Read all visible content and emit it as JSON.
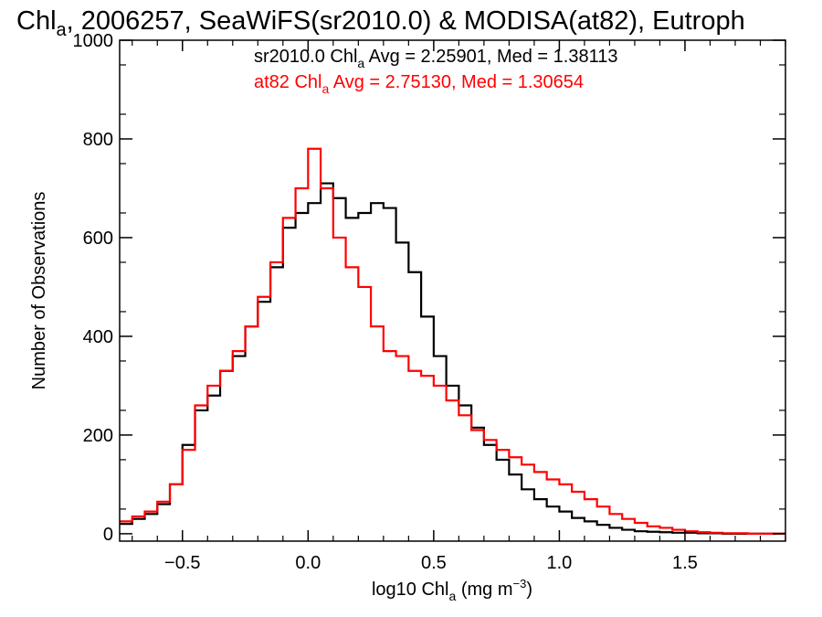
{
  "chart_data": {
    "type": "line",
    "title": {
      "main": "Chl",
      "sub": "a",
      "rest": ", 2006257, SeaWiFS(sr2010.0) & MODISA(at82), Eutroph"
    },
    "xlabel": {
      "main": "log10 Chl",
      "sub": "a",
      "rest": " (mg m",
      "sup": "−3",
      "end": ")"
    },
    "ylabel": "Number of Observations",
    "xlim": [
      -0.75,
      1.9
    ],
    "ylim": [
      -15,
      1000
    ],
    "xticks": [
      -0.5,
      0.0,
      0.5,
      1.0,
      1.5
    ],
    "xtick_labels": [
      "−0.5",
      "0.0",
      "0.5",
      "1.0",
      "1.5"
    ],
    "yticks": [
      0,
      200,
      400,
      600,
      800,
      1000
    ],
    "ytick_labels": [
      "0",
      "200",
      "400",
      "600",
      "800",
      "1000"
    ],
    "series": [
      {
        "color": "#000000",
        "legend": {
          "pre": "sr2010.0 Chl",
          "sub": "a",
          "post": " Avg = 2.25901, Med = 1.38113"
        },
        "x": [
          -0.75,
          -0.7,
          -0.65,
          -0.6,
          -0.55,
          -0.5,
          -0.45,
          -0.4,
          -0.35,
          -0.3,
          -0.25,
          -0.2,
          -0.15,
          -0.1,
          -0.05,
          0.0,
          0.05,
          0.1,
          0.15,
          0.2,
          0.25,
          0.3,
          0.35,
          0.4,
          0.45,
          0.5,
          0.55,
          0.6,
          0.65,
          0.7,
          0.75,
          0.8,
          0.85,
          0.9,
          0.95,
          1.0,
          1.05,
          1.1,
          1.15,
          1.2,
          1.25,
          1.3,
          1.35,
          1.4,
          1.45,
          1.5,
          1.55,
          1.6,
          1.65,
          1.7,
          1.75,
          1.8,
          1.85,
          1.9
        ],
        "y": [
          20,
          30,
          40,
          60,
          100,
          180,
          250,
          280,
          330,
          360,
          420,
          470,
          540,
          620,
          650,
          670,
          710,
          680,
          640,
          650,
          670,
          660,
          590,
          530,
          440,
          360,
          300,
          260,
          215,
          180,
          150,
          120,
          90,
          70,
          55,
          45,
          32,
          25,
          18,
          12,
          8,
          5,
          4,
          3,
          2,
          2,
          1,
          1,
          0,
          0,
          0,
          0,
          0,
          0
        ]
      },
      {
        "color": "#ff0000",
        "legend": {
          "pre": "at82 Chl",
          "sub": "a",
          "post": " Avg = 2.75130, Med = 1.30654"
        },
        "x": [
          -0.75,
          -0.7,
          -0.65,
          -0.6,
          -0.55,
          -0.5,
          -0.45,
          -0.4,
          -0.35,
          -0.3,
          -0.25,
          -0.2,
          -0.15,
          -0.1,
          -0.05,
          0.0,
          0.05,
          0.1,
          0.15,
          0.2,
          0.25,
          0.3,
          0.35,
          0.4,
          0.45,
          0.5,
          0.55,
          0.6,
          0.65,
          0.7,
          0.75,
          0.8,
          0.85,
          0.9,
          0.95,
          1.0,
          1.05,
          1.1,
          1.15,
          1.2,
          1.25,
          1.3,
          1.35,
          1.4,
          1.45,
          1.5,
          1.55,
          1.6,
          1.65,
          1.7,
          1.75,
          1.8,
          1.85,
          1.9
        ],
        "y": [
          25,
          35,
          45,
          65,
          100,
          170,
          260,
          300,
          330,
          370,
          420,
          480,
          550,
          640,
          700,
          780,
          700,
          600,
          540,
          500,
          420,
          370,
          360,
          330,
          320,
          300,
          270,
          240,
          210,
          190,
          170,
          155,
          140,
          125,
          110,
          100,
          85,
          70,
          55,
          40,
          30,
          22,
          15,
          12,
          8,
          5,
          3,
          2,
          1,
          1,
          0,
          0,
          0,
          0
        ]
      }
    ]
  }
}
